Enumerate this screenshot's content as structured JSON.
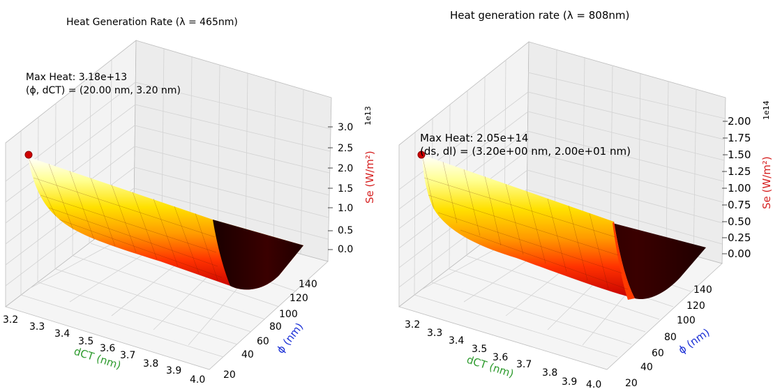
{
  "chart_data": [
    {
      "type": "surface3d",
      "title": "Heat Generation Rate (λ = 465nm)",
      "xlabel": "dCT (nm)",
      "ylabel": "ϕ (nm)",
      "zlabel": "Se (W/m²)",
      "x_ticks": [
        "3.2",
        "3.3",
        "3.4",
        "3.5",
        "3.6",
        "3.7",
        "3.8",
        "3.9",
        "4.0"
      ],
      "y_ticks": [
        "20",
        "40",
        "60",
        "80",
        "100",
        "120",
        "140"
      ],
      "z_ticks": [
        "0.0",
        "0.5",
        "1.0",
        "1.5",
        "2.0",
        "2.5",
        "3.0"
      ],
      "z_multiplier": "1e13",
      "xlim": [
        3.2,
        4.0
      ],
      "ylim": [
        20,
        150
      ],
      "zlim": [
        0,
        33000000000000.0
      ],
      "colormap": "hot",
      "max_point": {
        "dCT": 3.2,
        "phi": 20,
        "z": 31800000000000.0
      },
      "annotation": [
        "Max Heat: 3.18e+13",
        "(ϕ, dCT) = (20.00 nm,  3.20 nm)"
      ]
    },
    {
      "type": "surface3d",
      "title": "Heat generation rate (λ = 808nm)",
      "xlabel": "dCT (nm)",
      "ylabel": "ϕ (nm)",
      "zlabel": "Se (W/m²)",
      "x_ticks": [
        "3.2",
        "3.3",
        "3.4",
        "3.5",
        "3.6",
        "3.7",
        "3.8",
        "3.9",
        "4.0"
      ],
      "y_ticks": [
        "20",
        "40",
        "60",
        "80",
        "100",
        "120",
        "140"
      ],
      "z_ticks": [
        "0.00",
        "0.25",
        "0.50",
        "0.75",
        "1.00",
        "1.25",
        "1.50",
        "1.75",
        "2.00"
      ],
      "z_multiplier": "1e14",
      "xlim": [
        3.2,
        4.0
      ],
      "ylim": [
        20,
        150
      ],
      "zlim": [
        0,
        220000000000000.0
      ],
      "colormap": "hot",
      "max_point": {
        "dCT": 3.2,
        "phi": 20,
        "z": 205000000000000.0
      },
      "annotation": [
        "Max Heat: 2.05e+14",
        "(ds, dl) = (3.20e+00 nm, 2.00e+01 nm)"
      ]
    }
  ]
}
